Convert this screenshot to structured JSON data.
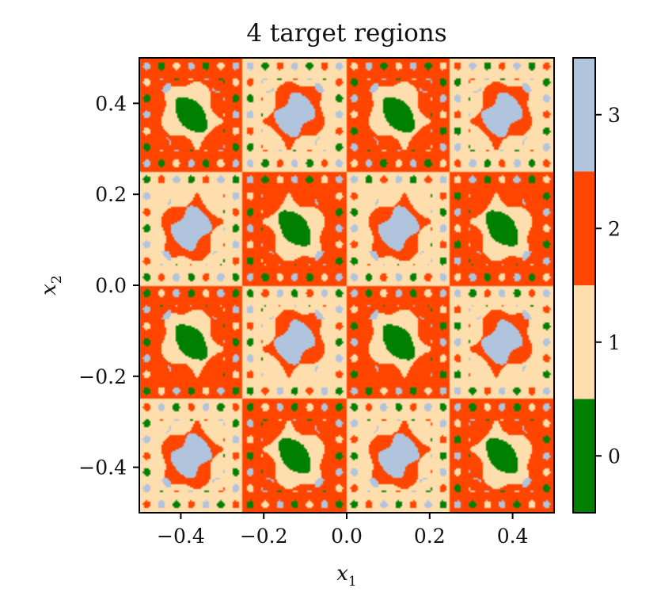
{
  "chart_data": {
    "type": "heatmap",
    "title": "4 target regions",
    "xlabel": {
      "base": "x",
      "sub": "1"
    },
    "ylabel": {
      "base": "x",
      "sub": "2"
    },
    "xlim": [
      -0.5,
      0.5
    ],
    "ylim": [
      -0.5,
      0.5
    ],
    "x_ticks": [
      {
        "value": -0.4,
        "label": "−0.4"
      },
      {
        "value": -0.2,
        "label": "−0.2"
      },
      {
        "value": 0.0,
        "label": "0.0"
      },
      {
        "value": 0.2,
        "label": "0.2"
      },
      {
        "value": 0.4,
        "label": "0.4"
      }
    ],
    "y_ticks": [
      {
        "value": 0.4,
        "label": "0.4"
      },
      {
        "value": 0.2,
        "label": "0.2"
      },
      {
        "value": 0.0,
        "label": "0.0"
      },
      {
        "value": -0.2,
        "label": "−0.2"
      },
      {
        "value": -0.4,
        "label": "−0.4"
      }
    ],
    "regions": [
      {
        "value": 0,
        "label": "0",
        "color": "#008000"
      },
      {
        "value": 1,
        "label": "1",
        "color": "#FFDEAD"
      },
      {
        "value": 2,
        "label": "2",
        "color": "#FF4500"
      },
      {
        "value": 3,
        "label": "3",
        "color": "#B0C4DE"
      }
    ],
    "grid": false,
    "colorbar": "right"
  }
}
